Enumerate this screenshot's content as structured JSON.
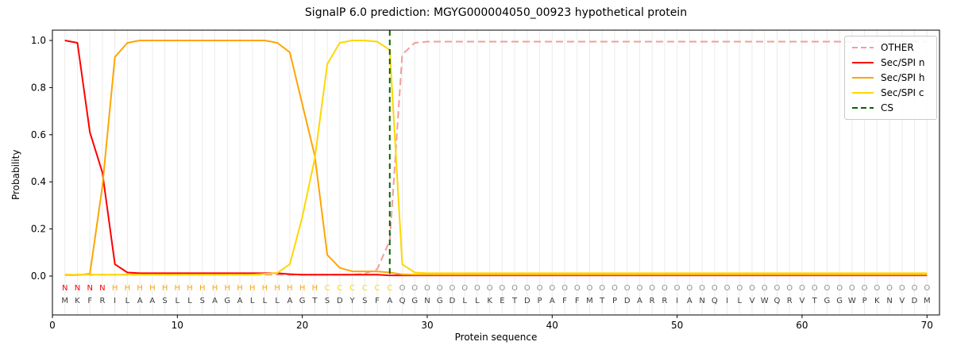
{
  "title": "SignalP 6.0 prediction: MGYG000004050_00923 hypothetical protein",
  "legend": {
    "position": "upper right",
    "items": [
      {
        "label": "OTHER"
      },
      {
        "label": "Sec/SPI n"
      },
      {
        "label": "Sec/SPI h"
      },
      {
        "label": "Sec/SPI c"
      },
      {
        "label": "CS"
      }
    ]
  },
  "chart_data": {
    "type": "line",
    "title": "SignalP 6.0 prediction: MGYG000004050_00923 hypothetical protein",
    "xlabel": "Protein sequence",
    "ylabel": "Probability",
    "xlim": [
      0,
      71
    ],
    "ylim": [
      -0.165,
      1.045
    ],
    "grid": "vertical gridline at every residue position",
    "legend_position": "upper right",
    "x_ticks": [
      0,
      10,
      20,
      30,
      40,
      50,
      60,
      70
    ],
    "x_tick_labels": [
      "0",
      "10",
      "20",
      "30",
      "40",
      "50",
      "60",
      "70"
    ],
    "y_ticks": [
      0.0,
      0.2,
      0.4,
      0.6,
      0.8,
      1.0
    ],
    "y_tick_labels": [
      "0.0",
      "0.2",
      "0.4",
      "0.6",
      "0.8",
      "1.0"
    ],
    "x_start_position": 1,
    "series": [
      {
        "name": "OTHER",
        "color": "#f29d9d",
        "style": "dashed",
        "values": [
          0.006,
          0.006,
          0.006,
          0.006,
          0.006,
          0.006,
          0.006,
          0.006,
          0.006,
          0.006,
          0.006,
          0.006,
          0.006,
          0.006,
          0.006,
          0.006,
          0.006,
          0.006,
          0.006,
          0.006,
          0.006,
          0.006,
          0.006,
          0.006,
          0.01,
          0.03,
          0.15,
          0.94,
          0.99,
          0.995,
          0.995,
          0.995,
          0.995,
          0.995,
          0.995,
          0.995,
          0.995,
          0.995,
          0.995,
          0.995,
          0.995,
          0.995,
          0.995,
          0.995,
          0.995,
          0.995,
          0.995,
          0.995,
          0.995,
          0.995,
          0.995,
          0.995,
          0.995,
          0.995,
          0.995,
          0.995,
          0.995,
          0.995,
          0.995,
          0.995,
          0.995,
          0.995,
          0.995,
          0.995,
          0.995,
          0.995,
          0.995,
          0.995,
          0.995,
          0.995
        ]
      },
      {
        "name": "Sec/SPI n",
        "color": "#ff0000",
        "style": "solid",
        "values": [
          1.0,
          0.99,
          0.61,
          0.44,
          0.05,
          0.015,
          0.012,
          0.012,
          0.012,
          0.012,
          0.012,
          0.012,
          0.012,
          0.012,
          0.012,
          0.012,
          0.012,
          0.012,
          0.008,
          0.006,
          0.006,
          0.006,
          0.006,
          0.006,
          0.006,
          0.006,
          0.003,
          0.003,
          0.003,
          0.003,
          0.003,
          0.003,
          0.003,
          0.003,
          0.003,
          0.003,
          0.003,
          0.003,
          0.003,
          0.003,
          0.003,
          0.003,
          0.003,
          0.003,
          0.003,
          0.003,
          0.003,
          0.003,
          0.003,
          0.003,
          0.003,
          0.003,
          0.003,
          0.003,
          0.003,
          0.003,
          0.003,
          0.003,
          0.003,
          0.003,
          0.003,
          0.003,
          0.003,
          0.003,
          0.003,
          0.003,
          0.003,
          0.003,
          0.003,
          0.003
        ]
      },
      {
        "name": "Sec/SPI h",
        "color": "#ffa500",
        "style": "solid",
        "values": [
          0.004,
          0.004,
          0.01,
          0.38,
          0.93,
          0.99,
          1.0,
          1.0,
          1.0,
          1.0,
          1.0,
          1.0,
          1.0,
          1.0,
          1.0,
          1.0,
          1.0,
          0.99,
          0.95,
          0.73,
          0.51,
          0.09,
          0.035,
          0.02,
          0.02,
          0.02,
          0.015,
          0.007,
          0.006,
          0.006,
          0.006,
          0.006,
          0.006,
          0.006,
          0.006,
          0.006,
          0.006,
          0.006,
          0.006,
          0.006,
          0.006,
          0.006,
          0.006,
          0.006,
          0.006,
          0.006,
          0.006,
          0.006,
          0.006,
          0.006,
          0.006,
          0.006,
          0.006,
          0.006,
          0.006,
          0.006,
          0.006,
          0.006,
          0.006,
          0.006,
          0.006,
          0.006,
          0.006,
          0.006,
          0.006,
          0.006,
          0.006,
          0.006,
          0.006,
          0.006
        ]
      },
      {
        "name": "Sec/SPI c",
        "color": "#ffd700",
        "style": "solid",
        "values": [
          0.006,
          0.006,
          0.006,
          0.006,
          0.006,
          0.006,
          0.006,
          0.006,
          0.006,
          0.006,
          0.006,
          0.006,
          0.006,
          0.006,
          0.006,
          0.006,
          0.009,
          0.013,
          0.05,
          0.25,
          0.5,
          0.9,
          0.99,
          1.0,
          1.0,
          0.995,
          0.96,
          0.05,
          0.015,
          0.012,
          0.012,
          0.012,
          0.012,
          0.012,
          0.012,
          0.012,
          0.012,
          0.012,
          0.012,
          0.012,
          0.012,
          0.012,
          0.012,
          0.012,
          0.012,
          0.012,
          0.012,
          0.012,
          0.012,
          0.012,
          0.012,
          0.012,
          0.012,
          0.012,
          0.012,
          0.012,
          0.012,
          0.012,
          0.012,
          0.012,
          0.012,
          0.012,
          0.012,
          0.012,
          0.012,
          0.012,
          0.012,
          0.012,
          0.012,
          0.012
        ]
      },
      {
        "name": "CS",
        "color": "#006400",
        "style": "dashed",
        "type": "vline",
        "x": 27
      }
    ],
    "region_labels": "NNNNHHHHHHHHHHHHHHHHHCCCCCCOOOOOOOOOOOOOOOOOOOOOOOOOOOOOOOOOOOOOOOOOOO",
    "region_colors": {
      "N": "#ff0000",
      "H": "#ffa500",
      "C": "#ffd700",
      "O": "#8f8f8f"
    },
    "sequence": "MKFRILAASLLSAGALLLAGTSDYSFAQGNGDLLKETDPAFFMTPDARRIANQILVWQRVTGGWPKNVDM",
    "sequence_color": "#3d3d3d"
  }
}
